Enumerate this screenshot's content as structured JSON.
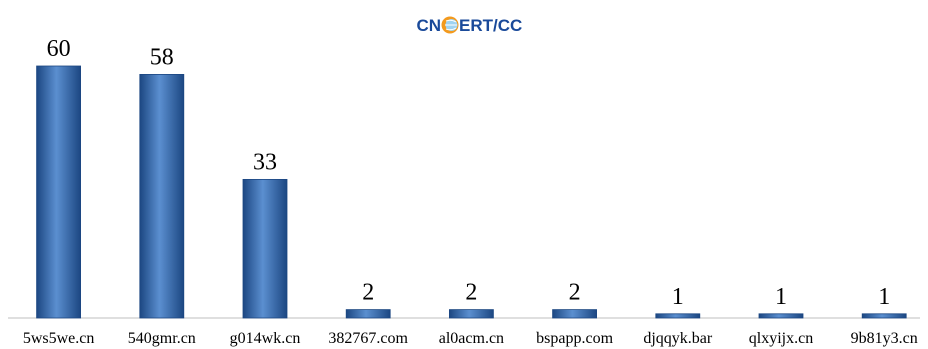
{
  "logo": {
    "text_left": "CN",
    "text_right": "ERT/CC",
    "text_color": "#1a4a9a",
    "globe_colors": [
      "#f39a1e",
      "#9fd3f2"
    ]
  },
  "chart_data": {
    "type": "bar",
    "categories": [
      "5ws5we.cn",
      "540gmr.cn",
      "g014wk.cn",
      "382767.com",
      "al0acm.cn",
      "bspapp.com",
      "djqqyk.bar",
      "qlxyijx.cn",
      "9b81y3.cn"
    ],
    "values": [
      60,
      58,
      33,
      2,
      2,
      2,
      1,
      1,
      1
    ],
    "title": "",
    "xlabel": "",
    "ylabel": "",
    "ylim": [
      0,
      65
    ],
    "grid": false,
    "legend": "none",
    "bar_color": "#2f63a8",
    "bar_color_light": "#5b8fd0",
    "bar_color_dark": "#1c4782"
  }
}
